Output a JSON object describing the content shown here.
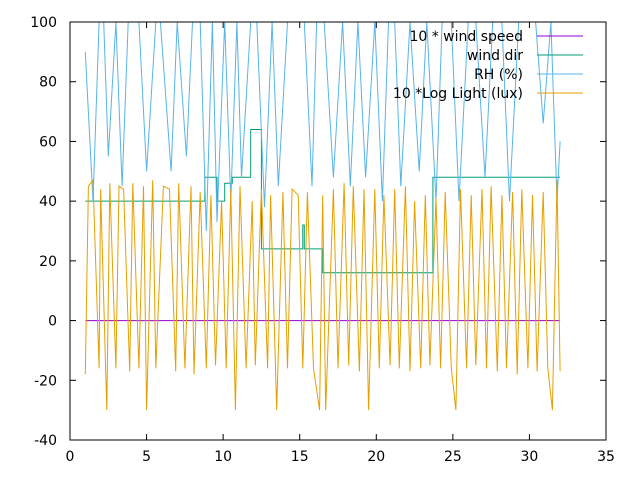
{
  "chart_data": {
    "type": "line",
    "title": "",
    "xlabel": "",
    "ylabel": "",
    "xlim": [
      0,
      35
    ],
    "ylim": [
      -40,
      100
    ],
    "xticks": [
      0,
      5,
      10,
      15,
      20,
      25,
      30,
      35
    ],
    "yticks": [
      -40,
      -20,
      0,
      20,
      40,
      60,
      80,
      100
    ],
    "xtick_labels": [
      "0",
      "5",
      "10",
      "15",
      "20",
      "25",
      "30",
      "35"
    ],
    "ytick_labels": [
      "-40",
      "-20",
      "0",
      "20",
      "40",
      "60",
      "80",
      "100"
    ],
    "grid": false,
    "legend_position": "top-right",
    "series": [
      {
        "name": "10 * wind speed",
        "color": "#9400d3",
        "x": [
          1,
          32
        ],
        "y": [
          0,
          0
        ]
      },
      {
        "name": "wind dir",
        "color": "#009e73",
        "x": [
          1,
          8.8,
          8.8,
          9.6,
          9.6,
          10.1,
          10.1,
          10.6,
          10.6,
          11.8,
          11.8,
          12.5,
          12.5,
          15.2,
          15.2,
          15.3,
          15.3,
          15.5,
          15.5,
          16.5,
          16.5,
          23.7,
          23.7,
          32
        ],
        "y": [
          40,
          40,
          48,
          48,
          40,
          40,
          46,
          46,
          48,
          48,
          64,
          64,
          24,
          24,
          32,
          32,
          24,
          24,
          24,
          24,
          16,
          16,
          48,
          48
        ]
      },
      {
        "name": "RH (%)",
        "color": "#56b4e9",
        "x": [
          1,
          1.1,
          1.5,
          1.9,
          2.2,
          2.5,
          3,
          3.4,
          3.8,
          4.5,
          5,
          5.6,
          5.9,
          6.6,
          7,
          7.6,
          8,
          8.5,
          8.9,
          9.3,
          9.6,
          10.1,
          10.5,
          10.9,
          11.2,
          11.8,
          12.2,
          12.7,
          13.2,
          13.6,
          14.2,
          14.7,
          15.3,
          15.8,
          16.1,
          16.6,
          17.2,
          17.8,
          18.3,
          18.8,
          19.3,
          19.9,
          20.4,
          20.8,
          21.2,
          21.6,
          22.2,
          22.8,
          23.3,
          23.9,
          24.3,
          24.9,
          25.4,
          26,
          26.5,
          27.1,
          27.6,
          28.2,
          28.7,
          29.3,
          29.8,
          30.4,
          30.9,
          31.4,
          31.8,
          32
        ],
        "y": [
          90,
          80,
          40,
          100,
          100,
          55,
          100,
          45,
          100,
          100,
          50,
          100,
          100,
          50,
          100,
          55,
          100,
          100,
          30,
          100,
          33,
          100,
          40,
          100,
          48,
          100,
          100,
          38,
          100,
          45,
          100,
          100,
          100,
          45,
          100,
          100,
          48,
          100,
          45,
          100,
          48,
          100,
          40,
          100,
          100,
          45,
          100,
          50,
          100,
          40,
          100,
          100,
          40,
          100,
          100,
          48,
          100,
          100,
          40,
          100,
          100,
          100,
          66,
          100,
          40,
          60
        ]
      },
      {
        "name": "10 *Log Light (lux)",
        "color": "#e69f00",
        "x": [
          1,
          1.2,
          1.5,
          1.9,
          2,
          2.4,
          2.6,
          3,
          3.2,
          3.5,
          3.9,
          4.1,
          4.5,
          4.8,
          5,
          5.4,
          5.6,
          6.1,
          6.5,
          6.9,
          7.1,
          7.5,
          7.9,
          8.1,
          8.5,
          8.9,
          9.2,
          9.5,
          9.9,
          10.2,
          10.5,
          10.8,
          11.1,
          11.5,
          11.9,
          12.1,
          12.5,
          12.9,
          13.1,
          13.5,
          13.9,
          14.2,
          14.5,
          14.9,
          15.2,
          15.5,
          15.9,
          16.3,
          16.5,
          16.7,
          17.2,
          17.5,
          17.9,
          18.2,
          18.5,
          18.9,
          19.2,
          19.5,
          19.9,
          20.2,
          20.5,
          20.9,
          21.2,
          21.5,
          21.9,
          22.2,
          22.5,
          22.9,
          23.2,
          23.5,
          23.9,
          24.2,
          24.5,
          24.9,
          25.2,
          25.5,
          25.9,
          26.2,
          26.5,
          26.9,
          27.2,
          27.5,
          27.9,
          28.2,
          28.5,
          28.9,
          29.2,
          29.5,
          29.9,
          30.2,
          30.5,
          30.9,
          31.2,
          31.5,
          31.8,
          32
        ],
        "y": [
          -18,
          45,
          47,
          -16,
          44,
          -30,
          46,
          -16,
          45,
          44,
          -17,
          46,
          -16,
          45,
          -30,
          47,
          -16,
          45,
          44,
          -17,
          46,
          -16,
          45,
          -18,
          43,
          -16,
          42,
          -15,
          40,
          -16,
          44,
          -30,
          45,
          -16,
          40,
          -15,
          44,
          -16,
          42,
          -30,
          43,
          -16,
          44,
          42,
          -16,
          43,
          -16,
          -30,
          42,
          -30,
          44,
          -16,
          46,
          -15,
          45,
          -17,
          44,
          -30,
          44,
          -16,
          42,
          -15,
          44,
          -16,
          45,
          -17,
          40,
          -16,
          42,
          -15,
          41,
          -16,
          43,
          -16,
          -30,
          44,
          -16,
          42,
          -15,
          44,
          -16,
          45,
          -17,
          42,
          -16,
          43,
          -18,
          44,
          -16,
          42,
          -17,
          43,
          -16,
          -30,
          47,
          -17
        ]
      }
    ]
  }
}
